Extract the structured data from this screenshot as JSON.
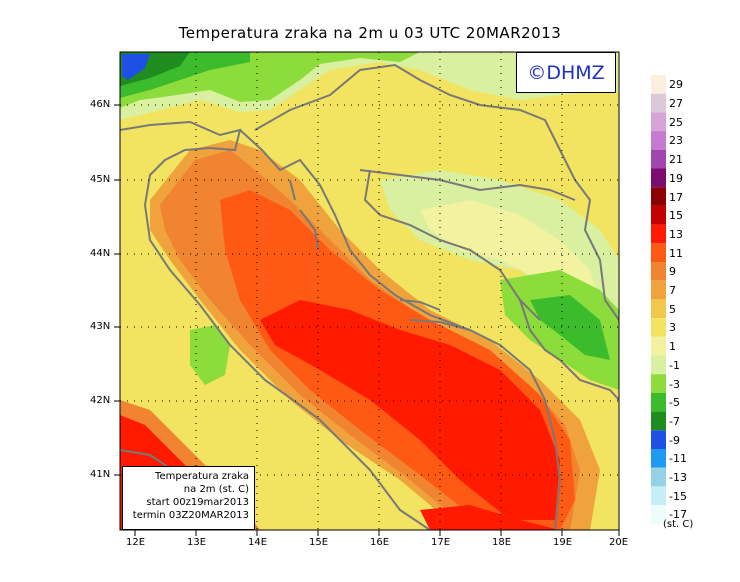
{
  "title": "Temperatura zraka na 2m u 03 UTC 20MAR2013",
  "logo": "©DHMZ",
  "info": {
    "line1": "Temperatura zraka",
    "line2": "na 2m (st. C)",
    "line3": "start 00z19mar2013",
    "line4": "termin 03Z20MAR2013"
  },
  "axes": {
    "lat_labels": [
      "46N",
      "45N",
      "44N",
      "43N",
      "42N",
      "41N"
    ],
    "lon_labels": [
      "12E",
      "13E",
      "14E",
      "15E",
      "16E",
      "17E",
      "18E",
      "19E",
      "20E"
    ]
  },
  "colorbar": {
    "labels": [
      "29",
      "27",
      "25",
      "23",
      "21",
      "19",
      "17",
      "15",
      "13",
      "11",
      "9",
      "7",
      "5",
      "3",
      "1",
      "-1",
      "-3",
      "-5",
      "-7",
      "-9",
      "-11",
      "-13",
      "-15",
      "-17"
    ],
    "colors": [
      "#fdeedd",
      "#dcc8d8",
      "#d8a3d6",
      "#c87ad0",
      "#a146ae",
      "#7a0e6e",
      "#8b0000",
      "#c40000",
      "#ff1a00",
      "#ff5a14",
      "#f08430",
      "#f0a23c",
      "#f2c84b",
      "#f2e460",
      "#f2f2a0",
      "#d8f0a0",
      "#8cdc3c",
      "#3cbc2c",
      "#1e8c1e",
      "#1e50e6",
      "#1e9bf0",
      "#96d2e6",
      "#c8eef5",
      "#eefcfc"
    ],
    "units": "(st. C)"
  }
}
